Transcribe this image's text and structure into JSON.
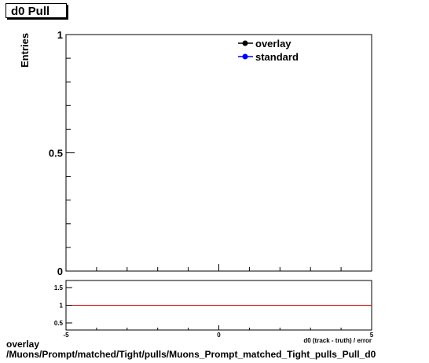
{
  "title": "d0 Pull",
  "footer": {
    "line1": "overlay",
    "line2": "/Muons/Prompt/matched/Tight/pulls/Muons_Prompt_matched_Tight_pulls_Pull_d0"
  },
  "chart_data": [
    {
      "type": "line",
      "title": "d0 Pull",
      "ylabel": "Entries",
      "xlim": [
        -5,
        5
      ],
      "ylim": [
        0,
        1
      ],
      "y_ticks": [
        "0",
        "0.5",
        "1"
      ],
      "series": [
        {
          "name": "overlay",
          "color": "#000000",
          "marker": "circle",
          "values": []
        },
        {
          "name": "standard",
          "color": "#0000ff",
          "marker": "circle",
          "values": []
        }
      ],
      "legend": "top-right",
      "grid": false
    },
    {
      "type": "line",
      "xlabel": "d0 (track - truth) / error",
      "xlim": [
        -5,
        5
      ],
      "ylim": [
        0.3,
        1.7
      ],
      "x_ticks": [
        "-5",
        "0",
        "5"
      ],
      "y_ticks": [
        "0.5",
        "1",
        "1.5"
      ],
      "reference_line": {
        "y": 1,
        "color": "#cc0000"
      },
      "grid": false
    }
  ]
}
